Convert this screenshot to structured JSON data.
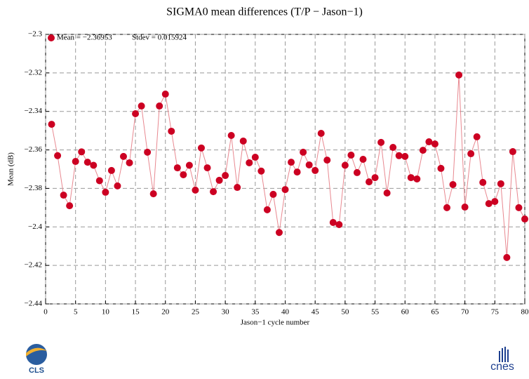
{
  "chart_data": {
    "type": "line",
    "title": "SIGMA0 mean differences (T/P − Jason−1)",
    "xlabel": "Jason−1 cycle number",
    "ylabel": "Mean (dB)",
    "annotation": "Stdev = 0.015924",
    "logos": [
      "CLS",
      "cnes"
    ],
    "x": [
      1,
      2,
      3,
      4,
      5,
      6,
      7,
      8,
      9,
      10,
      11,
      12,
      13,
      14,
      15,
      16,
      17,
      18,
      19,
      20,
      21,
      22,
      23,
      24,
      25,
      26,
      27,
      28,
      29,
      30,
      31,
      32,
      33,
      34,
      35,
      36,
      37,
      38,
      39,
      40,
      41,
      42,
      43,
      44,
      45,
      46,
      47,
      48,
      49,
      50,
      51,
      52,
      53,
      54,
      55,
      56,
      57,
      58,
      59,
      60,
      61,
      62,
      63,
      64,
      65,
      66,
      67,
      68,
      69,
      70,
      71,
      72,
      73,
      74,
      75,
      76,
      77,
      78,
      79,
      80
    ],
    "series": [
      {
        "name": "Mean = −2.36953",
        "color": "#cc0022",
        "line_color": "#e88890",
        "values": [
          -2.3467,
          -2.363,
          -2.3835,
          -2.389,
          -2.366,
          -2.361,
          -2.3664,
          -2.368,
          -2.376,
          -2.382,
          -2.3707,
          -2.3787,
          -2.3634,
          -2.3667,
          -2.3412,
          -2.3372,
          -2.3612,
          -2.3828,
          -2.3372,
          -2.331,
          -2.3503,
          -2.3693,
          -2.3729,
          -2.368,
          -2.3809,
          -2.359,
          -2.3693,
          -2.3817,
          -2.3758,
          -2.3733,
          -2.3525,
          -2.3795,
          -2.3554,
          -2.3667,
          -2.3638,
          -2.371,
          -2.3911,
          -2.3831,
          -2.4029,
          -2.3806,
          -2.3664,
          -2.3715,
          -2.3612,
          -2.3678,
          -2.3707,
          -2.3514,
          -2.3653,
          -2.3977,
          -2.3988,
          -2.368,
          -2.3627,
          -2.3718,
          -2.3649,
          -2.3766,
          -2.3744,
          -2.3561,
          -2.3824,
          -2.3587,
          -2.363,
          -2.3634,
          -2.3744,
          -2.3751,
          -2.3602,
          -2.3558,
          -2.3569,
          -2.3696,
          -2.39,
          -2.378,
          -2.3211,
          -2.3897,
          -2.362,
          -2.3532,
          -2.3769,
          -2.3879,
          -2.3868,
          -2.3776,
          -2.4159,
          -2.3609,
          -2.39,
          -2.3959
        ]
      }
    ],
    "xlim": [
      0,
      80
    ],
    "xticks": [
      0,
      5,
      10,
      15,
      20,
      25,
      30,
      35,
      40,
      45,
      50,
      55,
      60,
      65,
      70,
      75,
      80
    ],
    "ylim": [
      -2.44,
      -2.3
    ],
    "yticks": [
      {
        "value": -2.3,
        "label": "−2.3"
      },
      {
        "value": -2.32,
        "label": "−2.32"
      },
      {
        "value": -2.34,
        "label": "−2.34"
      },
      {
        "value": -2.36,
        "label": "−2.36"
      },
      {
        "value": -2.38,
        "label": "−2.38"
      },
      {
        "value": -2.4,
        "label": "−2.4"
      },
      {
        "value": -2.42,
        "label": "−2.42"
      },
      {
        "value": -2.44,
        "label": "−2.44"
      }
    ],
    "grid": true
  }
}
